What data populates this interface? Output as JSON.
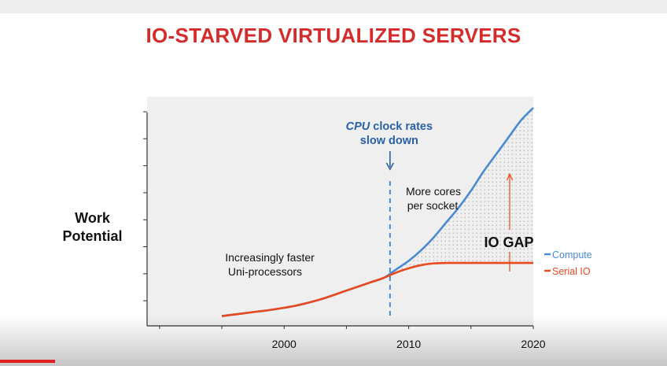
{
  "slide": {
    "title": "IO-STARVED VIRTUALIZED SERVERS"
  },
  "video_player": {
    "progress": 0.083,
    "progress_color": "#e02020"
  },
  "chart_data": {
    "type": "line",
    "title": "",
    "ylabel": "Work Potential",
    "xlabel": "",
    "x_ticks": [
      2000,
      2010,
      2020
    ],
    "xlim": [
      1989,
      2020
    ],
    "ylim": [
      0,
      100
    ],
    "y_tick_labels": false,
    "grid": false,
    "background": "#efefef",
    "series": [
      {
        "name": "Compute",
        "color": "#4a8ad0",
        "points": [
          [
            1995,
            2
          ],
          [
            1997,
            3.5
          ],
          [
            1999,
            5
          ],
          [
            2001,
            7
          ],
          [
            2003,
            10
          ],
          [
            2005,
            14
          ],
          [
            2007,
            18
          ],
          [
            2008,
            20
          ],
          [
            2009,
            24
          ],
          [
            2010,
            28
          ],
          [
            2011,
            33
          ],
          [
            2012,
            39
          ],
          [
            2013,
            46
          ],
          [
            2014,
            53
          ],
          [
            2015,
            61
          ],
          [
            2016,
            70
          ],
          [
            2017,
            78
          ],
          [
            2018,
            86
          ],
          [
            2019,
            94
          ],
          [
            2020,
            100
          ]
        ]
      },
      {
        "name": "Serial IO",
        "color": "#e8491e",
        "points": [
          [
            1995,
            2
          ],
          [
            1997,
            3.5
          ],
          [
            1999,
            5
          ],
          [
            2001,
            7
          ],
          [
            2003,
            10
          ],
          [
            2005,
            14
          ],
          [
            2007,
            18
          ],
          [
            2008,
            20
          ],
          [
            2009,
            22.5
          ],
          [
            2010,
            24.5
          ],
          [
            2011,
            26
          ],
          [
            2012,
            26.8
          ],
          [
            2013,
            27
          ],
          [
            2014,
            27
          ],
          [
            2016,
            27
          ],
          [
            2018,
            27
          ],
          [
            2020,
            27
          ]
        ]
      }
    ],
    "legend_position": "right",
    "vline": {
      "x": 2008.5,
      "color": "#4a8ad0",
      "style": "dashed"
    },
    "annotations": {
      "cpu_italic": "CPU",
      "cpu_rest": " clock rates",
      "cpu_line2": "slow down",
      "more_cores_line1": "More cores",
      "more_cores_line2": "per socket",
      "uni_line1": "Increasingly faster",
      "uni_line2": "Uni-processors",
      "io_gap": "IO GAP"
    },
    "annotation_color": "#2a60a8",
    "gap_arrow_color": "#e8491e"
  }
}
